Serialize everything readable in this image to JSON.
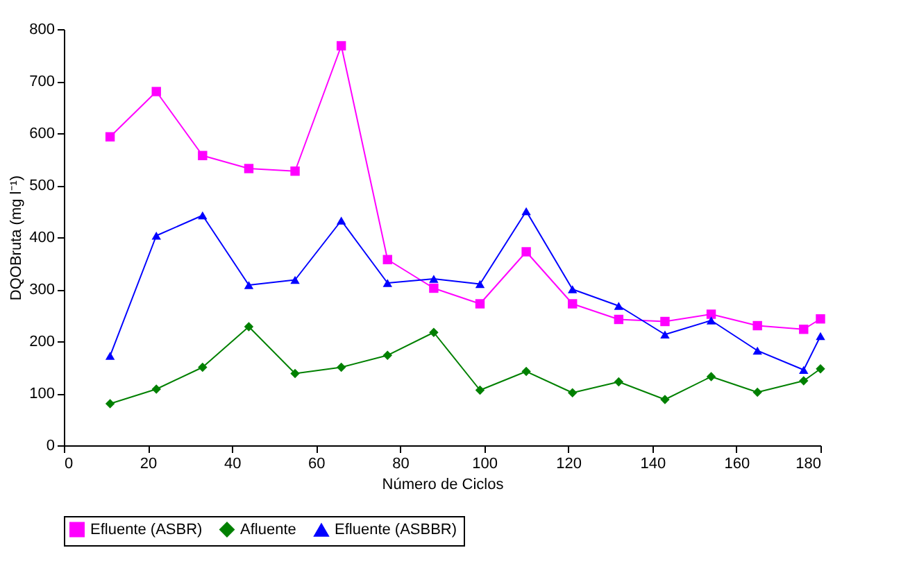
{
  "chart_data": {
    "type": "line",
    "x": [
      11,
      22,
      33,
      44,
      55,
      66,
      77,
      88,
      99,
      110,
      121,
      132,
      143,
      154,
      165,
      176,
      180
    ],
    "series": [
      {
        "name": "Efluente (ASBR)",
        "color": "#ff00ff",
        "marker": "square",
        "values": [
          593,
          680,
          557,
          532,
          527,
          768,
          357,
          302,
          272,
          372,
          272,
          242,
          238,
          252,
          230,
          223,
          243
        ]
      },
      {
        "name": "Afluente",
        "color": "#008000",
        "marker": "diamond",
        "values": [
          80,
          108,
          150,
          228,
          138,
          150,
          173,
          217,
          106,
          142,
          101,
          122,
          88,
          132,
          102,
          124,
          147
        ]
      },
      {
        "name": "Efluente (ASBBR)",
        "color": "#0000ff",
        "marker": "triangle",
        "values": [
          172,
          403,
          442,
          308,
          318,
          432,
          312,
          320,
          310,
          450,
          300,
          268,
          213,
          240,
          182,
          145,
          210
        ]
      }
    ],
    "xlabel": "Número de Ciclos",
    "ylabel": "DQOBruta (mg l⁻¹)",
    "xlim": [
      0,
      180
    ],
    "xticks": [
      0,
      20,
      40,
      60,
      80,
      100,
      120,
      140,
      160,
      180
    ],
    "ylim": [
      0,
      800
    ],
    "yticks": [
      0,
      100,
      200,
      300,
      400,
      500,
      600,
      700,
      800
    ],
    "grid": false,
    "legend": "bottom",
    "line_style": "solid"
  }
}
